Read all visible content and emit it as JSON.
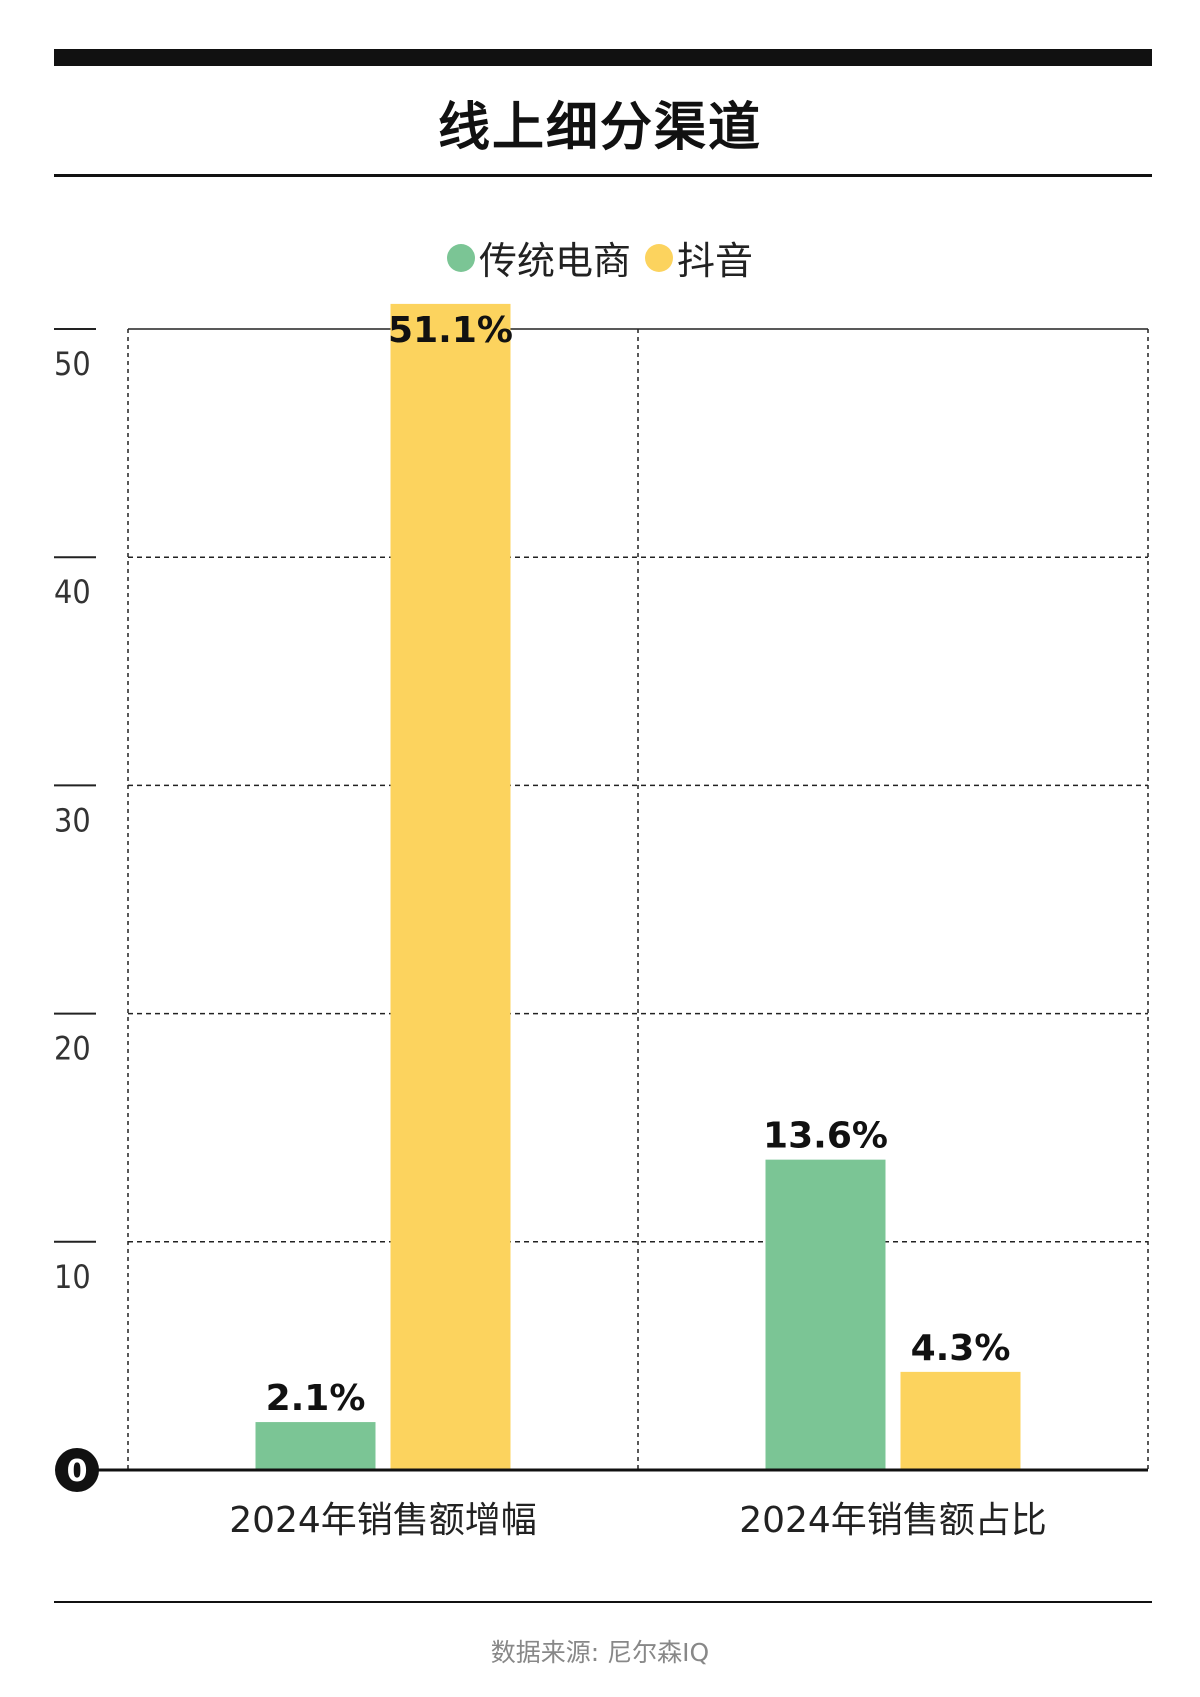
{
  "title": "线上细分渠道",
  "legend": [
    {
      "label": "传统电商",
      "color": "#7bc595"
    },
    {
      "label": "抖音",
      "color": "#fcd35e"
    }
  ],
  "source": "数据来源: 尼尔森IQ",
  "chart_data": {
    "type": "bar",
    "categories": [
      "2024年销售额增幅",
      "2024年销售额占比"
    ],
    "series": [
      {
        "name": "传统电商",
        "values": [
          2.1,
          13.6
        ],
        "labels": [
          "2.1%",
          "13.6%"
        ],
        "color": "#7bc595"
      },
      {
        "name": "抖音",
        "values": [
          51.1,
          4.3
        ],
        "labels": [
          "51.1%",
          "4.3%"
        ],
        "color": "#fcd35e"
      }
    ],
    "yticks": [
      "10",
      "20",
      "30",
      "40",
      "50"
    ],
    "ytick_values": [
      10,
      20,
      30,
      40,
      50
    ],
    "zero_label": "0",
    "ylim": [
      0,
      50
    ],
    "grid": true
  }
}
